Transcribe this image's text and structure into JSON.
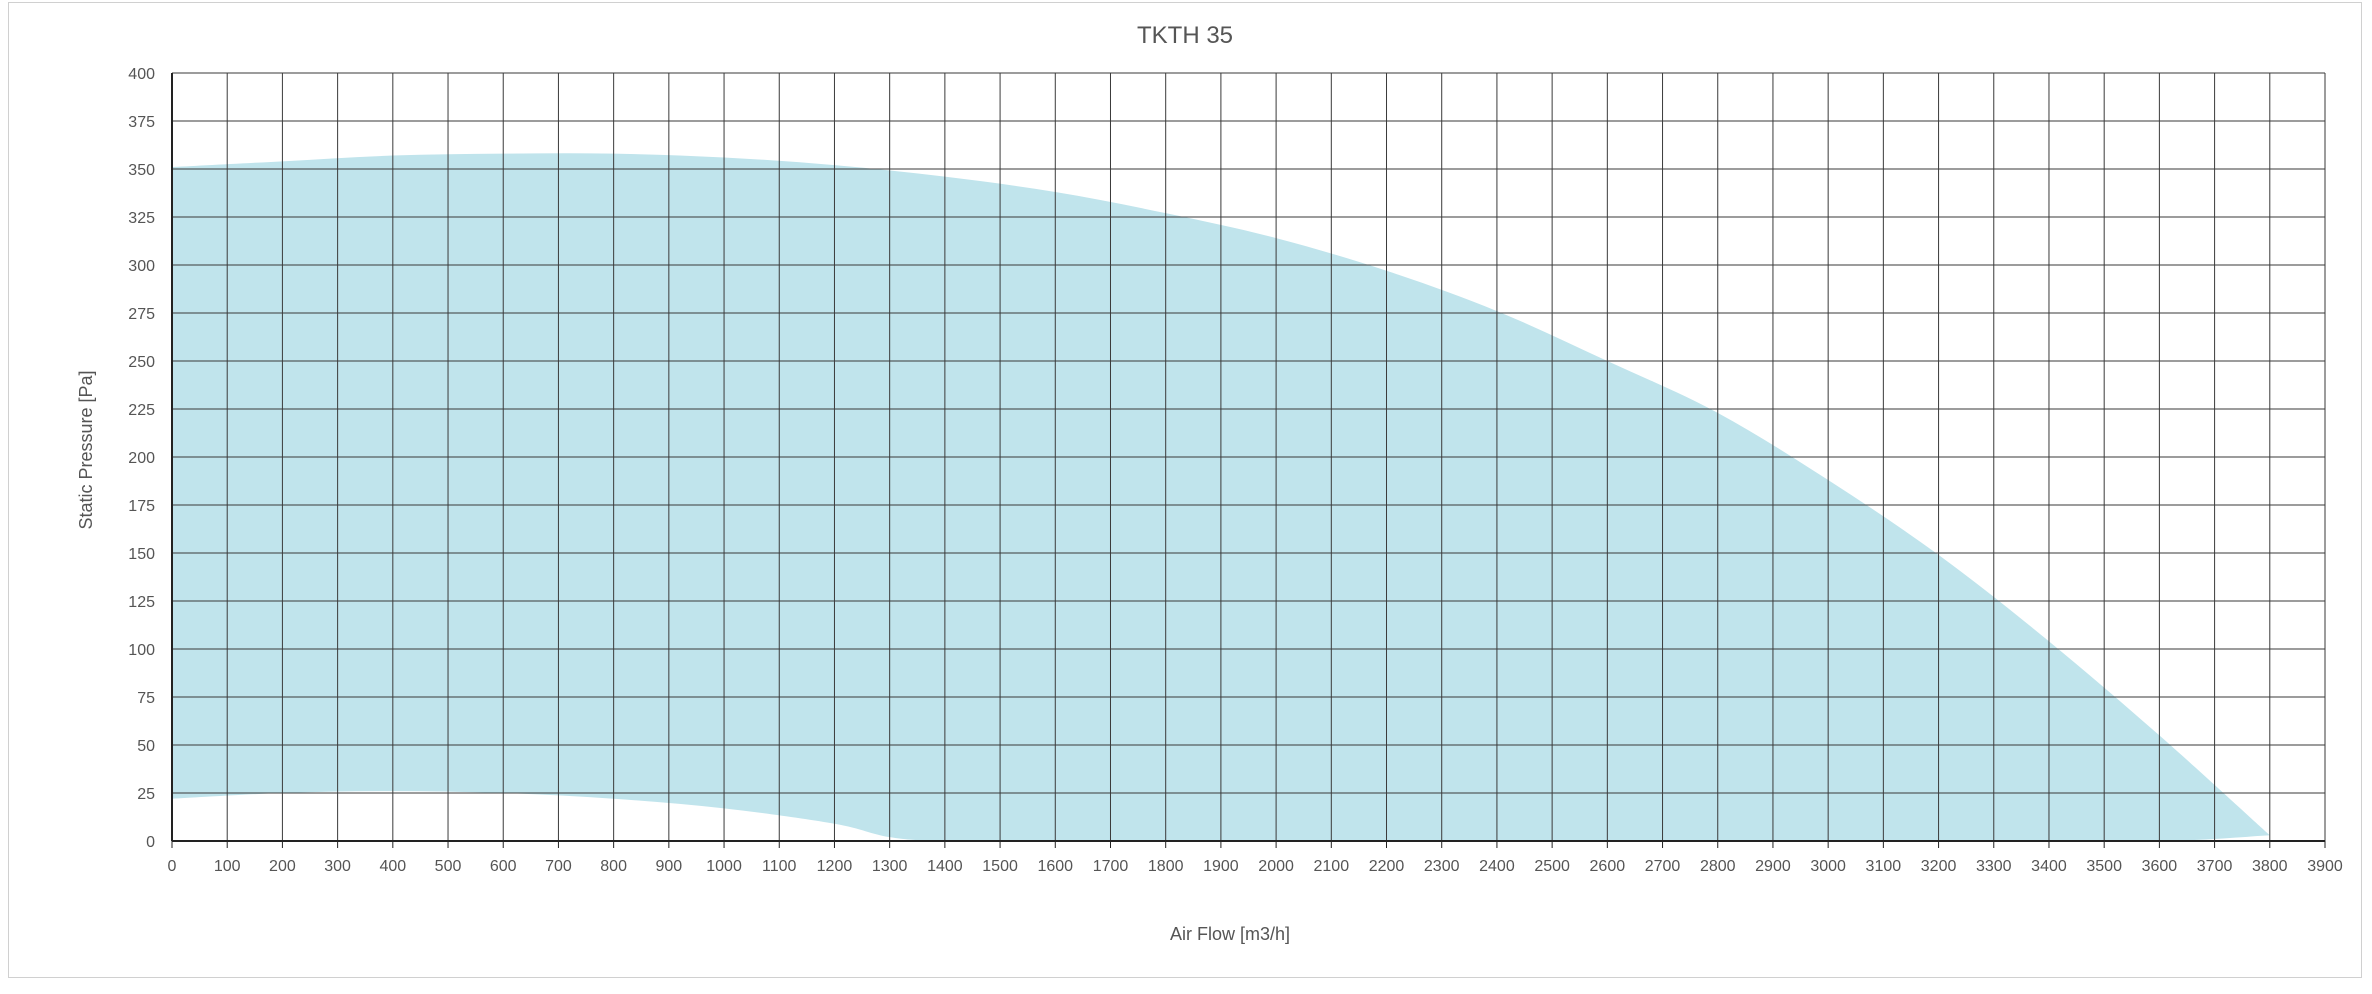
{
  "chart_data": {
    "type": "area",
    "title": "TKTH 35",
    "xlabel": "Air Flow [m3/h]",
    "ylabel": "Static Pressure [Pa]",
    "xlim": [
      0,
      3900
    ],
    "ylim": [
      0,
      400
    ],
    "x_ticks": [
      "0",
      "100",
      "200",
      "300",
      "400",
      "500",
      "600",
      "700",
      "800",
      "900",
      "1000",
      "1100",
      "1200",
      "1300",
      "1400",
      "1500",
      "1600",
      "1700",
      "1800",
      "1900",
      "2000",
      "2100",
      "2200",
      "2300",
      "2400",
      "2500",
      "2600",
      "2700",
      "2800",
      "2900",
      "3000",
      "3100",
      "3200",
      "3300",
      "3400",
      "3500",
      "3600",
      "3700",
      "3800",
      "3900"
    ],
    "y_ticks": [
      "0",
      "25",
      "50",
      "75",
      "100",
      "125",
      "150",
      "175",
      "200",
      "225",
      "250",
      "275",
      "300",
      "325",
      "350",
      "375",
      "400"
    ],
    "grid": true,
    "fill_color": "#c0e4ec",
    "series": [
      {
        "role": "upper",
        "x": [
          0,
          200,
          400,
          600,
          800,
          1000,
          1200,
          1400,
          1600,
          1800,
          2000,
          2200,
          2400,
          2600,
          2800,
          3000,
          3200,
          3400,
          3600,
          3800
        ],
        "y": [
          351,
          354,
          357,
          358,
          358,
          356,
          352,
          346,
          338,
          327,
          314,
          297,
          276,
          250,
          223,
          188,
          149,
          104,
          55,
          3
        ]
      },
      {
        "role": "lower",
        "x": [
          0,
          200,
          400,
          600,
          800,
          1000,
          1200,
          1300,
          1400,
          1600,
          1800,
          2000,
          2400,
          2800,
          3200,
          3600,
          3800
        ],
        "y": [
          22,
          25,
          26,
          25,
          22,
          17,
          9,
          2,
          0,
          0,
          0,
          0,
          0,
          0,
          0,
          0,
          3
        ]
      }
    ]
  }
}
